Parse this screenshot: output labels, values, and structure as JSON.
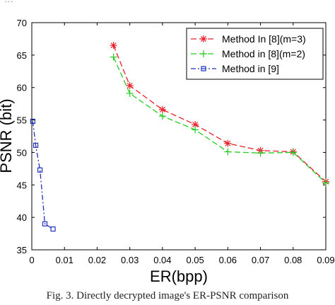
{
  "top_fragment": "…",
  "caption": "Fig. 3.   Directly decrypted image's ER-PSNR comparison",
  "chart_data": {
    "type": "line",
    "title": "",
    "xlabel": "ER(bpp)",
    "ylabel": "PSNR (bit)",
    "xlim": [
      0,
      0.09
    ],
    "ylim": [
      35,
      70
    ],
    "xticks": [
      0,
      0.01,
      0.02,
      0.03,
      0.04,
      0.05,
      0.06,
      0.07,
      0.08,
      0.09
    ],
    "xtick_labels": [
      "0",
      "0.01",
      "0.02",
      "0.03",
      "0.04",
      "0.05",
      "0.06",
      "0.07",
      "0.08",
      "0.09"
    ],
    "yticks": [
      35,
      40,
      45,
      50,
      55,
      60,
      65,
      70
    ],
    "ytick_labels": [
      "35",
      "40",
      "45",
      "50",
      "55",
      "60",
      "65",
      "70"
    ],
    "grid": false,
    "legend_position": "top-right",
    "series": [
      {
        "name": "Method In [8](m=3)",
        "color": "#e8202a",
        "line": "dashed",
        "marker": "star",
        "x": [
          0.025,
          0.03,
          0.04,
          0.05,
          0.06,
          0.07,
          0.08,
          0.09
        ],
        "y": [
          66.5,
          60.3,
          56.6,
          54.3,
          51.4,
          50.3,
          50.1,
          45.5
        ]
      },
      {
        "name": "Method in [8](m=2)",
        "color": "#22cc22",
        "line": "dashed",
        "marker": "plus",
        "x": [
          0.025,
          0.03,
          0.04,
          0.05,
          0.06,
          0.07,
          0.08,
          0.09
        ],
        "y": [
          64.7,
          59.1,
          55.6,
          53.5,
          50.1,
          49.9,
          50.0,
          45.3
        ]
      },
      {
        "name": "Method in [9]",
        "color": "#2233bb",
        "line": "dashdot",
        "marker": "square",
        "x": [
          0.0003,
          0.0012,
          0.0025,
          0.004,
          0.0065
        ],
        "y": [
          54.8,
          51.1,
          47.3,
          39.0,
          38.2
        ]
      }
    ]
  }
}
